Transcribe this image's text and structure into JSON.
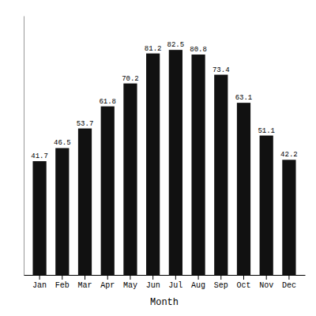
{
  "chart_data": {
    "type": "bar",
    "categories": [
      "Jan",
      "Feb",
      "Mar",
      "Apr",
      "May",
      "Jun",
      "Jul",
      "Aug",
      "Sep",
      "Oct",
      "Nov",
      "Dec"
    ],
    "values": [
      41.7,
      46.5,
      53.7,
      61.8,
      70.2,
      81.2,
      82.5,
      80.8,
      73.4,
      63.1,
      51.1,
      42.2
    ],
    "color": "#111111",
    "xlabel": "Month",
    "ylim": [
      0,
      95
    ],
    "data_labels": true,
    "tick_labels": "x"
  }
}
